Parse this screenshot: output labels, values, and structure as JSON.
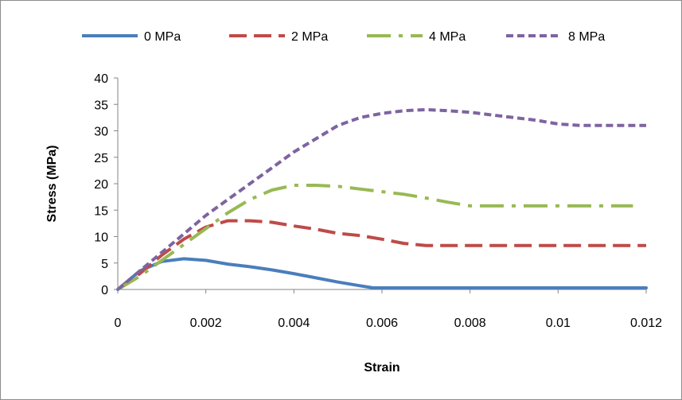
{
  "chart_data": {
    "type": "line",
    "title": "",
    "xlabel": "Strain",
    "ylabel": "Stress (MPa)",
    "xlim": [
      0,
      0.012
    ],
    "ylim": [
      0,
      40
    ],
    "x_ticks": [
      "0",
      "0.002",
      "0.004",
      "0.006",
      "0.008",
      "0.01",
      "0.012"
    ],
    "y_ticks": [
      "0",
      "5",
      "10",
      "15",
      "20",
      "25",
      "30",
      "35",
      "40"
    ],
    "grid": false,
    "legend_position": "top",
    "series": [
      {
        "name": "0 MPa",
        "color": "#4a7ebb",
        "style": "solid",
        "x": [
          0,
          0.0005,
          0.001,
          0.0015,
          0.002,
          0.0025,
          0.003,
          0.0035,
          0.004,
          0.0045,
          0.005,
          0.0055,
          0.0058,
          0.007,
          0.009,
          0.012
        ],
        "y": [
          0,
          3.5,
          5.3,
          5.8,
          5.5,
          4.8,
          4.3,
          3.7,
          3.0,
          2.2,
          1.4,
          0.7,
          0.3,
          0.3,
          0.3,
          0.3
        ]
      },
      {
        "name": "2 MPa",
        "color": "#be4b48",
        "style": "dashed",
        "x": [
          0,
          0.0005,
          0.001,
          0.0015,
          0.002,
          0.0025,
          0.003,
          0.0035,
          0.004,
          0.0045,
          0.005,
          0.0055,
          0.006,
          0.0065,
          0.007,
          0.008,
          0.01,
          0.012
        ],
        "y": [
          0,
          3,
          6.5,
          9.5,
          11.8,
          13,
          13,
          12.7,
          12,
          11.4,
          10.6,
          10.2,
          9.5,
          8.7,
          8.3,
          8.3,
          8.3,
          8.3
        ]
      },
      {
        "name": "4 MPa",
        "color": "#98b954",
        "style": "dashdot",
        "x": [
          0,
          0.0005,
          0.001,
          0.0015,
          0.002,
          0.0025,
          0.003,
          0.0035,
          0.004,
          0.0045,
          0.005,
          0.0055,
          0.006,
          0.0065,
          0.007,
          0.0075,
          0.008,
          0.009,
          0.01,
          0.011,
          0.0117
        ],
        "y": [
          0,
          2.5,
          5.5,
          8.5,
          11.5,
          14.5,
          17,
          18.8,
          19.7,
          19.7,
          19.5,
          19,
          18.5,
          18,
          17.3,
          16.5,
          15.8,
          15.8,
          15.8,
          15.8,
          15.8
        ]
      },
      {
        "name": "8 MPa",
        "color": "#7e63a1",
        "style": "dotted",
        "x": [
          0,
          0.0005,
          0.001,
          0.0015,
          0.002,
          0.0025,
          0.003,
          0.0035,
          0.004,
          0.0045,
          0.005,
          0.0055,
          0.006,
          0.0065,
          0.007,
          0.0075,
          0.008,
          0.0085,
          0.009,
          0.0095,
          0.01,
          0.0105,
          0.011,
          0.012
        ],
        "y": [
          0,
          3.5,
          7,
          10.5,
          14,
          17,
          20,
          23,
          26,
          28.5,
          31,
          32.5,
          33.3,
          33.8,
          34,
          33.8,
          33.5,
          33,
          32.5,
          32,
          31.3,
          31,
          31,
          31
        ]
      }
    ]
  }
}
